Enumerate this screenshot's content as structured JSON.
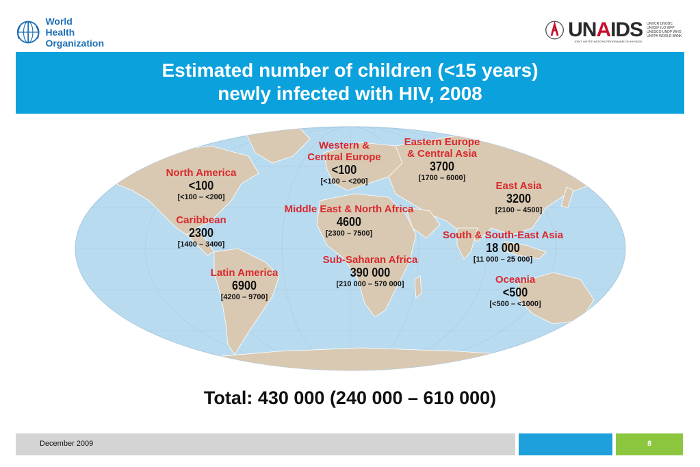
{
  "header": {
    "who_line1": "World Health",
    "who_line2": "Organization",
    "unaids_prefix": "UN",
    "unaids_a": "A",
    "unaids_suffix": "IDS",
    "unaids_cosponsors": "UNHCR UNODC UNICEF ILO WFP UNESCO UNDP WHO UNFPA WORLD BANK",
    "unaids_tagline": "JOINT UNITED NATIONS PROGRAMME ON HIV/AIDS"
  },
  "title": {
    "line1": "Estimated number of children (<15 years)",
    "line2": "newly infected with HIV, 2008"
  },
  "regions": {
    "north_america": {
      "name": "North America",
      "value": "<100",
      "range": "[<100 – <200]"
    },
    "caribbean": {
      "name": "Caribbean",
      "value": "2300",
      "range": "[1400 – 3400]"
    },
    "latin_america": {
      "name": "Latin America",
      "value": "6900",
      "range": "[4200 – 9700]"
    },
    "western_central_europe": {
      "name_line1": "Western &",
      "name_line2": "Central Europe",
      "value": "<100",
      "range": "[<100 – <200]"
    },
    "eastern_europe_central_asia": {
      "name_line1": "Eastern Europe",
      "name_line2": "& Central Asia",
      "value": "3700",
      "range": "[1700 – 6000]"
    },
    "east_asia": {
      "name": "East Asia",
      "value": "3200",
      "range": "[2100 – 4500]"
    },
    "middle_east_north_africa": {
      "name": "Middle East & North Africa",
      "value": "4600",
      "range": "[2300 – 7500]"
    },
    "south_south_east_asia": {
      "name": "South & South-East Asia",
      "value": "18 000",
      "range": "[11 000 – 25 000]"
    },
    "sub_saharan_africa": {
      "name": "Sub-Saharan Africa",
      "value": "390 000",
      "range": "[210 000 – 570 000]"
    },
    "oceania": {
      "name": "Oceania",
      "value": "<500",
      "range": "[<500 – <1000]"
    }
  },
  "total": "Total: 430 000 (240 000 – 610 000)",
  "footer": {
    "date": "December 2009",
    "page": "8"
  },
  "colors": {
    "banner": "#0aa1dd",
    "region_name": "#d9282d",
    "ocean": "#b9dbf0",
    "land": "#d9c9b2",
    "footer_gray": "#d4d4d4",
    "footer_blue": "#1ea0dc",
    "footer_green": "#8cc63f"
  }
}
